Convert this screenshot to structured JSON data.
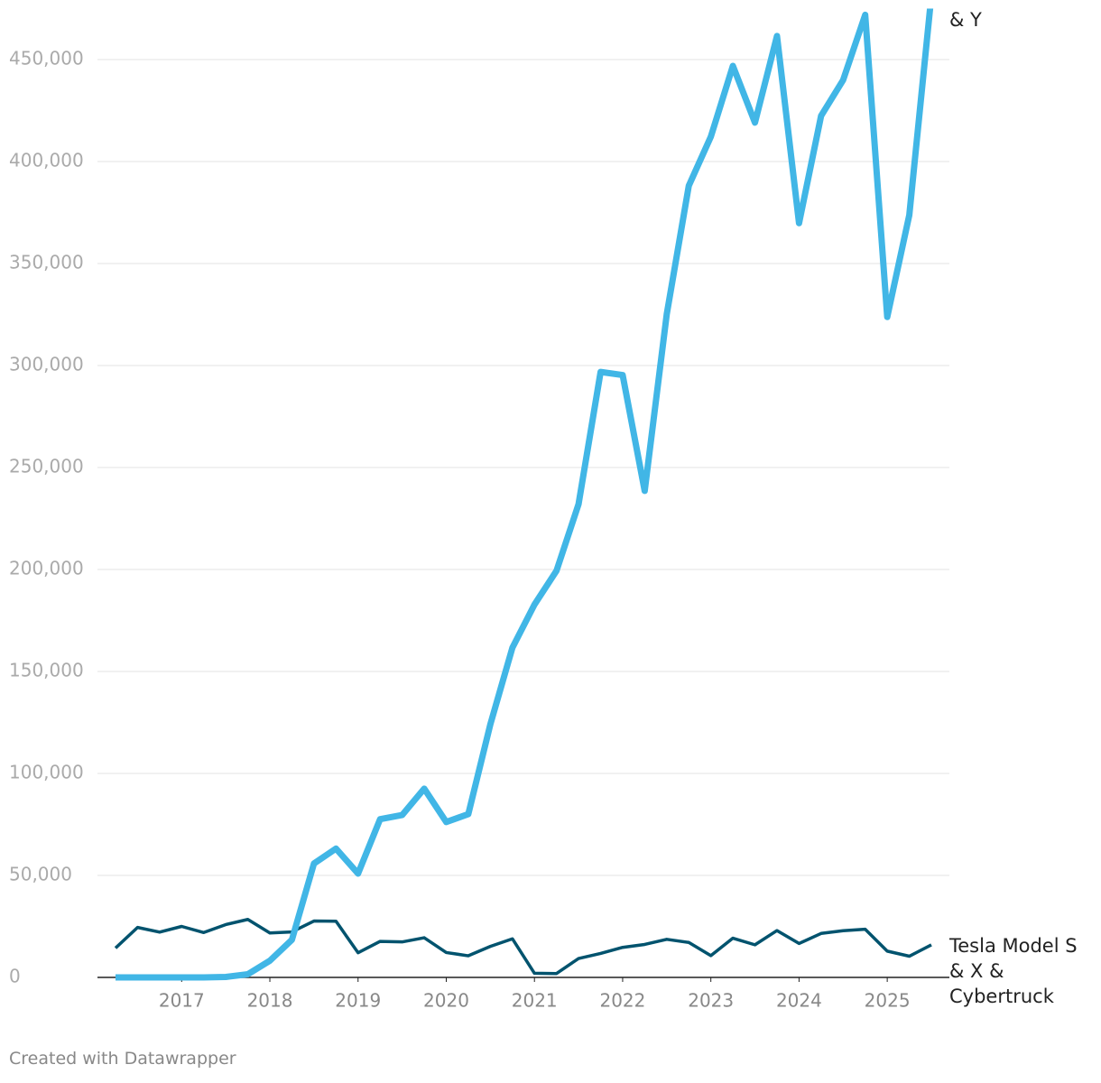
{
  "chart_data": {
    "type": "line",
    "x": [
      2016.25,
      2016.5,
      2016.75,
      2017,
      2017.25,
      2017.5,
      2017.75,
      2018,
      2018.25,
      2018.5,
      2018.75,
      2019,
      2019.25,
      2019.5,
      2019.75,
      2020,
      2020.25,
      2020.5,
      2020.75,
      2021,
      2021.25,
      2021.5,
      2021.75,
      2022,
      2022.25,
      2022.5,
      2022.75,
      2023,
      2023.25,
      2023.5,
      2023.75,
      2024,
      2024.25,
      2024.5,
      2024.75,
      2025,
      2025.25,
      2025.5
    ],
    "xlim": [
      2016.25,
      2025.5
    ],
    "xticks": [
      2017,
      2018,
      2019,
      2020,
      2021,
      2022,
      2023,
      2024,
      2025
    ],
    "ylim": [
      0,
      475000
    ],
    "yticks": [
      0,
      {
        "value": 50000,
        "label": "50,000"
      },
      {
        "value": 100000,
        "label": "100,000"
      },
      {
        "value": 150000,
        "label": "150,000"
      },
      {
        "value": 200000,
        "label": "200,000"
      },
      {
        "value": 250000,
        "label": "250,000"
      },
      {
        "value": 300000,
        "label": "300,000"
      },
      {
        "value": 350000,
        "label": "350,000"
      },
      {
        "value": 400000,
        "label": "400,000"
      },
      {
        "value": 450000,
        "label": "450,000"
      }
    ],
    "grid": true,
    "series": [
      {
        "name": "& Y",
        "color": "#41b6e6",
        "values": [
          0,
          0,
          0,
          0,
          0,
          220,
          1550,
          8180,
          18440,
          55840,
          63150,
          50900,
          77550,
          79600,
          92550,
          76200,
          80050,
          124100,
          161650,
          182780,
          199360,
          232025,
          296850,
          295324,
          238533,
          325158,
          388131,
          412180,
          446915,
          419074,
          461538,
          369783,
          422405,
          439975,
          471930,
          323800,
          373728,
          481166
        ]
      },
      {
        "name": "Tesla Model S & X & Cybertruck",
        "color": "#01536e",
        "values": [
          14400,
          24500,
          22200,
          25000,
          22000,
          25900,
          28425,
          21800,
          22300,
          27650,
          27550,
          12100,
          17650,
          17400,
          19450,
          12200,
          10600,
          15200,
          18920,
          2020,
          1890,
          9275,
          11750,
          14724,
          16162,
          18672,
          17147,
          10695,
          19225,
          15985,
          22969,
          16630,
          21551,
          22915,
          23640,
          12881,
          10394,
          15933
        ]
      }
    ]
  },
  "footer": "Created with Datawrapper"
}
